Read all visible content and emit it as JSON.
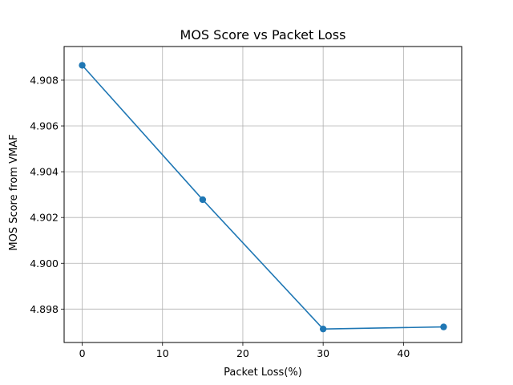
{
  "chart_data": {
    "type": "line",
    "title": "MOS Score vs Packet Loss",
    "xlabel": "Packet Loss(%)",
    "ylabel": "MOS Score from VMAF",
    "xlim": [
      -2.25,
      47.25
    ],
    "ylim": [
      4.89654,
      4.90947
    ],
    "xticks": [
      0,
      10,
      20,
      30,
      40
    ],
    "xtick_labels": [
      "0",
      "10",
      "20",
      "30",
      "40"
    ],
    "yticks": [
      4.898,
      4.9,
      4.902,
      4.904,
      4.906,
      4.908
    ],
    "ytick_labels": [
      "4.898",
      "4.900",
      "4.902",
      "4.904",
      "4.906",
      "4.908"
    ],
    "grid": true,
    "legend": "none",
    "series": [
      {
        "x": [
          0,
          15,
          30,
          45
        ],
        "y": [
          4.90865,
          4.90278,
          4.89713,
          4.89722
        ],
        "color": "#1f77b4",
        "marker": "circle"
      }
    ]
  }
}
